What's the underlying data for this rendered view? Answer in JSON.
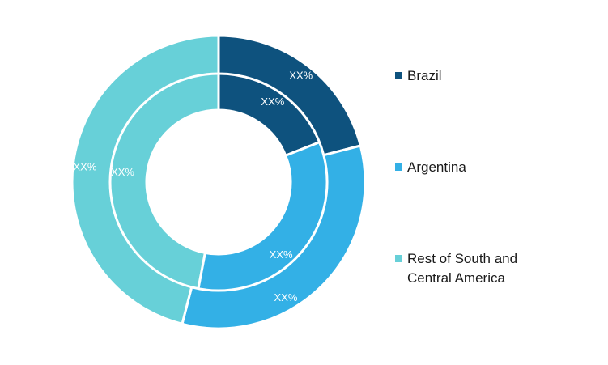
{
  "chart_data": {
    "type": "pie",
    "variant": "nested-donut",
    "categories": [
      "Brazil",
      "Argentina",
      "Rest of South and Central America"
    ],
    "series": [
      {
        "values": [
          19,
          34,
          47
        ],
        "labels": [
          "XX%",
          "XX%",
          "XX%"
        ]
      },
      {
        "values": [
          21,
          33,
          46
        ],
        "labels": [
          "XX%",
          "XX%",
          "XX%"
        ]
      }
    ],
    "colors": [
      "#0e527e",
      "#33b0e6",
      "#67d0d8"
    ],
    "legend": {
      "placement": "right",
      "items": [
        "Brazil",
        "Argentina",
        "Rest of South and Central America"
      ]
    }
  }
}
